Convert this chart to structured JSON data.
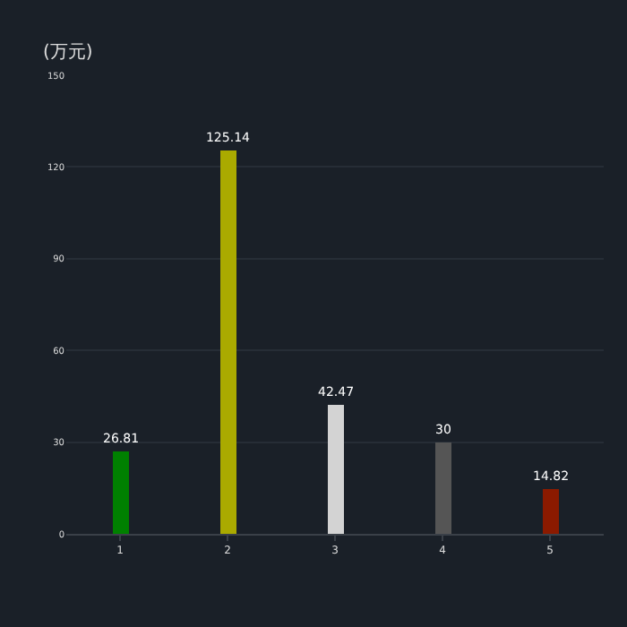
{
  "chart_data": {
    "type": "bar",
    "ylabel": "(万元)",
    "categories": [
      "1",
      "2",
      "3",
      "4",
      "5"
    ],
    "values": [
      26.81,
      125.14,
      42.47,
      30,
      14.82
    ],
    "colors": [
      "#008000",
      "#aaaa00",
      "#d3d3d3",
      "#555555",
      "#8b1a00"
    ],
    "data_labels": true,
    "ylim": [
      0,
      150
    ],
    "yticks": [
      0,
      30,
      60,
      90,
      120,
      150
    ],
    "grid": "y",
    "legend": false
  }
}
